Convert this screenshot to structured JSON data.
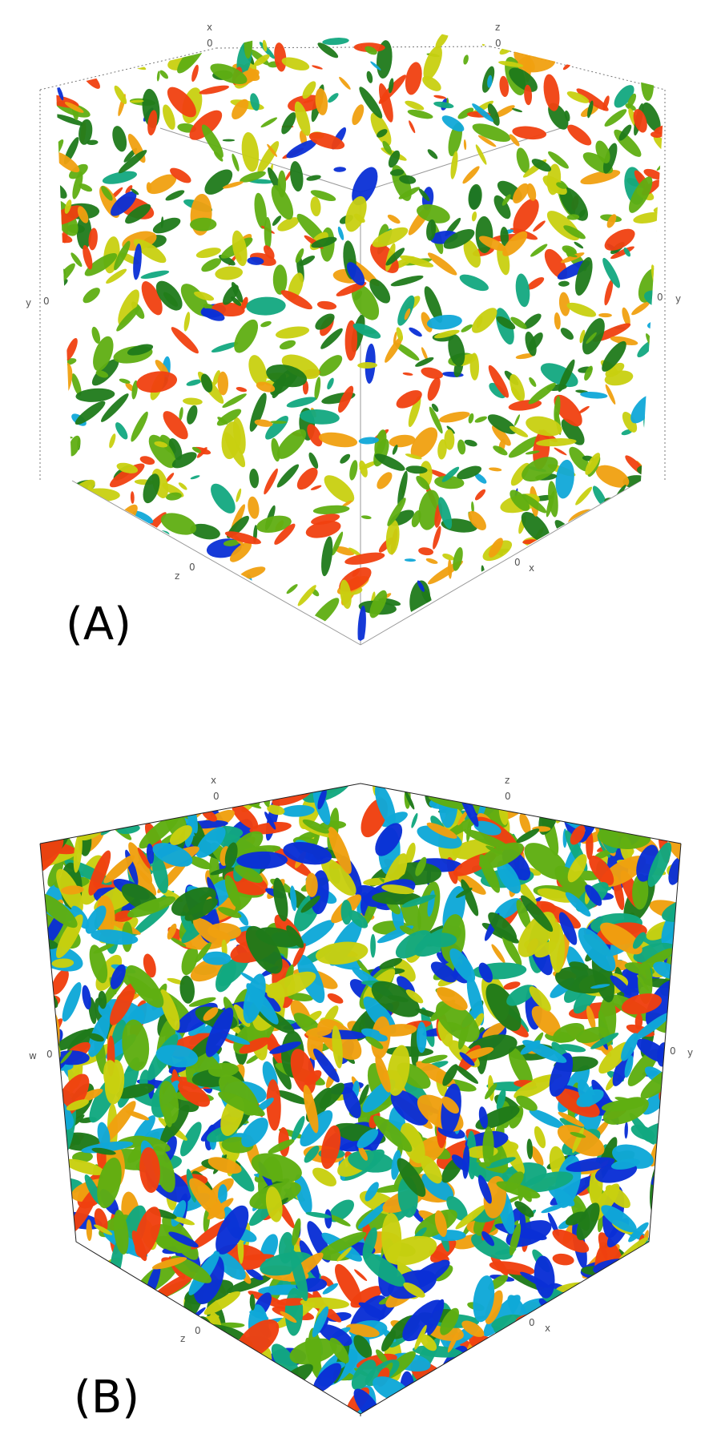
{
  "panels": [
    {
      "label": "(A)",
      "style": "sparse",
      "axes": {
        "top_left_letter": "x",
        "top_left_tick": "0",
        "top_right_letter": "z",
        "top_right_tick": "0",
        "left_letter": "y",
        "left_tick": "0",
        "right_letter": "y",
        "right_tick": "0",
        "bottom_left_letter": "z",
        "bottom_left_tick": "0",
        "bottom_right_letter": "x",
        "bottom_right_tick": "0"
      }
    },
    {
      "label": "(B)",
      "style": "dense",
      "axes": {
        "top_left_letter": "x",
        "top_left_tick": "0",
        "top_right_letter": "z",
        "top_right_tick": "0",
        "left_letter": "w",
        "left_tick": "0",
        "right_letter": "y",
        "right_tick": "0",
        "bottom_left_letter": "z",
        "bottom_left_tick": "0",
        "bottom_right_letter": "x",
        "bottom_right_tick": "0"
      }
    }
  ],
  "colormap": [
    "#0a2fd6",
    "#10a8d8",
    "#12a880",
    "#1f7a1a",
    "#5fae12",
    "#c8d010",
    "#f0a010",
    "#f04010"
  ]
}
